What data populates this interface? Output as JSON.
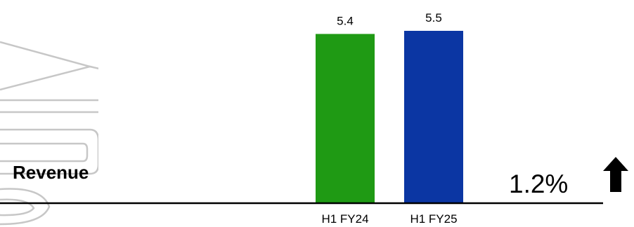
{
  "watermark_text": "only",
  "metric": {
    "label": "Revenue",
    "change": "1.2%",
    "direction_icon": "arrow-up-icon"
  },
  "colors": {
    "bar_fy24": "#1f9a14",
    "bar_fy25": "#0b36a3",
    "axis": "#000000",
    "watermark": "#c7c7c7"
  },
  "chart_data": {
    "type": "bar",
    "categories": [
      "H1 FY24",
      "H1 FY25"
    ],
    "values": [
      5.4,
      5.5
    ],
    "data_labels": [
      "5.4",
      "5.5"
    ],
    "title": "",
    "xlabel": "",
    "ylabel": "",
    "ylim": [
      0,
      5.5
    ]
  }
}
